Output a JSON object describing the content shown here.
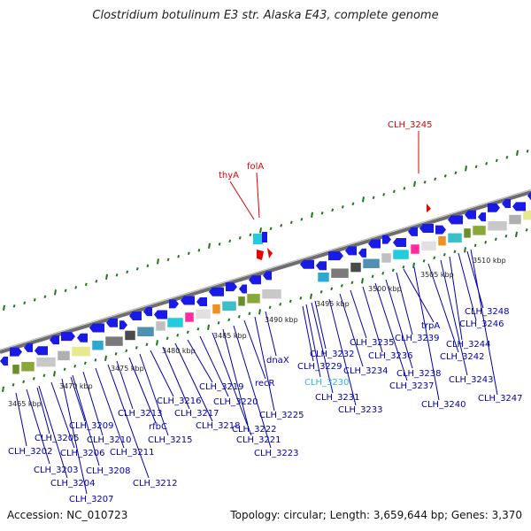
{
  "title": "Clostridium botulinum E3 str. Alaska E43, complete genome",
  "accession": "Accession: NC_010723",
  "topology": "Topology: circular; Length: 3,659,644 bp; Genes: 3,370",
  "colors": {
    "backbone": "#7f7f7f",
    "ticks": "#1a7a1a",
    "gene_arrow": "#1a1ae6",
    "gene_label": "#0000aa",
    "highlight_label": "#dd0000",
    "highlight_arrow": "#ee0000",
    "selected_label": "#30b8e0"
  },
  "kbp_ticks": [
    "3465 kbp",
    "3470 kbp",
    "3475 kbp",
    "3480 kbp",
    "3485 kbp",
    "3490 kbp",
    "3495 kbp",
    "3500 kbp",
    "3505 kbp",
    "3510 kbp"
  ],
  "highlight_labels": [
    "CLH_3245",
    "thyA",
    "folA"
  ],
  "gene_labels": [
    "CLH_3202",
    "CLH_3203",
    "CLH_3204",
    "CLH_3205",
    "CLH_3206",
    "CLH_3207",
    "CLH_3208",
    "CLH_3209",
    "CLH_3210",
    "CLH_3211",
    "CLH_3212",
    "CLH_3213",
    "rfbC",
    "CLH_3215",
    "CLH_3216",
    "CLH_3217",
    "CLH_3218",
    "CLH_3219",
    "CLH_3220",
    "CLH_3221",
    "CLH_3222",
    "CLH_3223",
    "recR",
    "CLH_3225",
    "dnaX",
    "CLH_3229",
    "CLH_3230",
    "CLH_3231",
    "CLH_3232",
    "CLH_3233",
    "CLH_3234",
    "CLH_3235",
    "CLH_3236",
    "CLH_3237",
    "CLH_3238",
    "trpA",
    "CLH_3239",
    "CLH_3240",
    "CLH_3242",
    "CLH_3243",
    "CLH_3244",
    "CLH_3246",
    "CLH_3247",
    "CLH_3248"
  ]
}
